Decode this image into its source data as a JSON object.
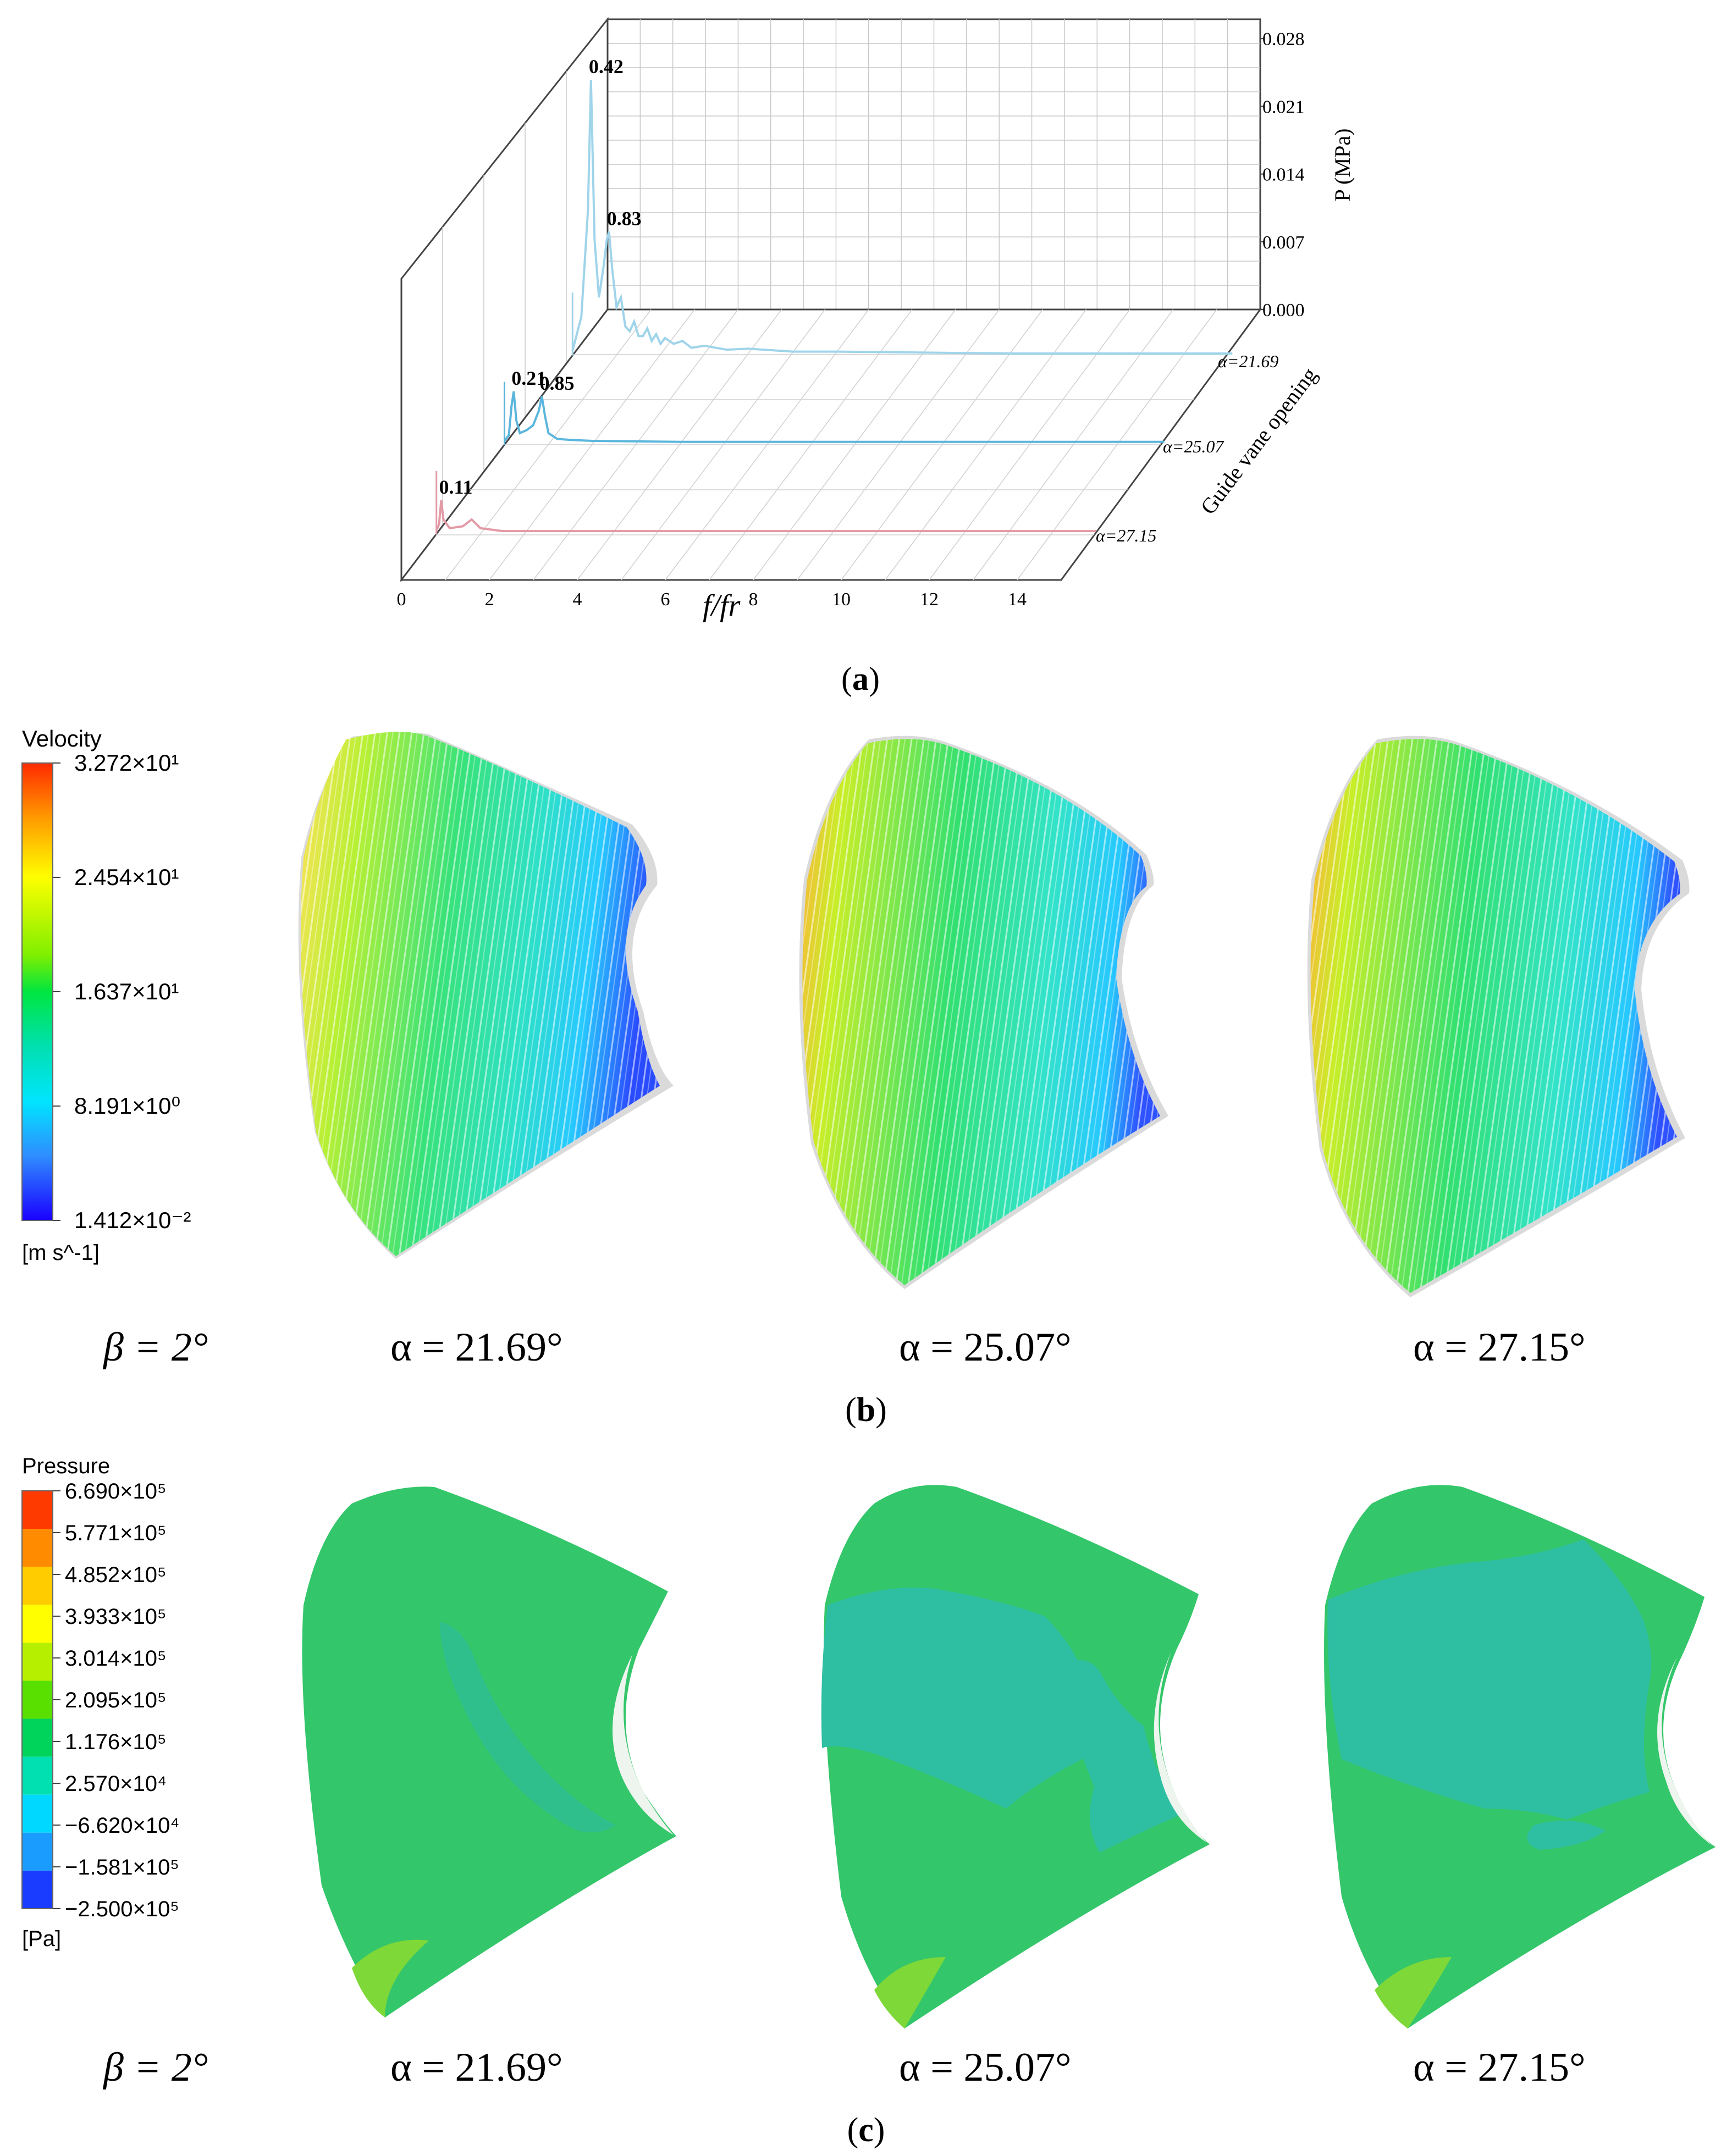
{
  "chart_data": {
    "type": "line",
    "title": "",
    "xlabel": "f/fr",
    "ylabel": "P (MPa)",
    "zlabel": "Guide vane opening",
    "xlim": [
      0,
      15
    ],
    "ylim": [
      0,
      0.03
    ],
    "x_ticks": [
      "0",
      "2",
      "4",
      "6",
      "8",
      "10",
      "12",
      "14"
    ],
    "y_ticks": [
      "0.000",
      "0.007",
      "0.014",
      "0.021",
      "0.028"
    ],
    "series": [
      {
        "name": "α=21.69",
        "color": "#9fd4ea",
        "points": [
          [
            0,
            0.0005
          ],
          [
            0.2,
            0.004
          ],
          [
            0.35,
            0.015
          ],
          [
            0.42,
            0.0285
          ],
          [
            0.5,
            0.012
          ],
          [
            0.6,
            0.006
          ],
          [
            0.7,
            0.009
          ],
          [
            0.78,
            0.012
          ],
          [
            0.83,
            0.0128
          ],
          [
            0.9,
            0.009
          ],
          [
            1.0,
            0.005
          ],
          [
            1.1,
            0.006
          ],
          [
            1.2,
            0.003
          ],
          [
            1.3,
            0.0025
          ],
          [
            1.4,
            0.0035
          ],
          [
            1.5,
            0.002
          ],
          [
            1.6,
            0.002
          ],
          [
            1.7,
            0.0028
          ],
          [
            1.8,
            0.0015
          ],
          [
            1.9,
            0.0022
          ],
          [
            2.0,
            0.0012
          ],
          [
            2.1,
            0.0018
          ],
          [
            2.3,
            0.0012
          ],
          [
            2.5,
            0.0015
          ],
          [
            2.7,
            0.0008
          ],
          [
            3.0,
            0.001
          ],
          [
            3.5,
            0.0006
          ],
          [
            4.0,
            0.0007
          ],
          [
            5,
            0.0004
          ],
          [
            6,
            0.0004
          ],
          [
            8,
            0.0003
          ],
          [
            10,
            0.0002
          ],
          [
            12,
            0.0002
          ],
          [
            14,
            0.0002
          ],
          [
            15,
            0.0002
          ]
        ]
      },
      {
        "name": "α=25.07",
        "color": "#5ab6dc",
        "points": [
          [
            0,
            0.0004
          ],
          [
            0.1,
            0.001
          ],
          [
            0.16,
            0.004
          ],
          [
            0.21,
            0.0055
          ],
          [
            0.27,
            0.0025
          ],
          [
            0.35,
            0.0012
          ],
          [
            0.5,
            0.0015
          ],
          [
            0.65,
            0.002
          ],
          [
            0.78,
            0.0035
          ],
          [
            0.85,
            0.005
          ],
          [
            0.92,
            0.003
          ],
          [
            1.0,
            0.0012
          ],
          [
            1.2,
            0.0006
          ],
          [
            1.5,
            0.0005
          ],
          [
            2,
            0.0004
          ],
          [
            4,
            0.0003
          ],
          [
            8,
            0.0003
          ],
          [
            12,
            0.0003
          ],
          [
            15,
            0.0003
          ]
        ]
      },
      {
        "name": "α=27.15",
        "color": "#e39aa6",
        "points": [
          [
            0,
            0.0004
          ],
          [
            0.06,
            0.001
          ],
          [
            0.11,
            0.0035
          ],
          [
            0.16,
            0.0015
          ],
          [
            0.3,
            0.0006
          ],
          [
            0.6,
            0.0008
          ],
          [
            0.8,
            0.0015
          ],
          [
            1.0,
            0.0006
          ],
          [
            1.5,
            0.0003
          ],
          [
            3,
            0.0003
          ],
          [
            8,
            0.0003
          ],
          [
            15,
            0.0003
          ]
        ]
      }
    ],
    "annotations": [
      {
        "text": "0.42",
        "series": 0,
        "x": 0.42
      },
      {
        "text": "0.83",
        "series": 0,
        "x": 0.83
      },
      {
        "text": "0.21",
        "series": 1,
        "x": 0.21
      },
      {
        "text": "0.85",
        "series": 1,
        "x": 0.85
      },
      {
        "text": "0.11",
        "series": 2,
        "x": 0.11
      }
    ]
  },
  "labels": {
    "a": "(a)",
    "b": "(b)",
    "c": "(c)",
    "bold_a": "a",
    "bold_b": "b",
    "bold_c": "c",
    "beta": "β = 2°",
    "alpha1": "α = 21.69°",
    "alpha2": "α = 25.07°",
    "alpha3": "α = 27.15°",
    "series_a1": "α=21.69",
    "series_a2": "α=25.07",
    "series_a3": "α=27.15"
  },
  "velocity_legend": {
    "title": "Velocity",
    "unit": "[m s^-1]",
    "ticks": [
      "3.272×10¹",
      "2.454×10¹",
      "1.637×10¹",
      "8.191×10⁰",
      "1.412×10⁻²"
    ]
  },
  "pressure_legend": {
    "title": "Pressure",
    "unit": "[Pa]",
    "ticks": [
      "6.690×10⁵",
      "5.771×10⁵",
      "4.852×10⁵",
      "3.933×10⁵",
      "3.014×10⁵",
      "2.095×10⁵",
      "1.176×10⁵",
      "2.570×10⁴",
      "−6.620×10⁴",
      "−1.581×10⁵",
      "−2.500×10⁵"
    ],
    "colors": [
      "#ff3a00",
      "#ff8c00",
      "#ffcc00",
      "#ffff00",
      "#b6f000",
      "#5ae000",
      "#00d45a",
      "#00e0b0",
      "#00d8ff",
      "#1a9cff",
      "#1a3cff"
    ]
  }
}
